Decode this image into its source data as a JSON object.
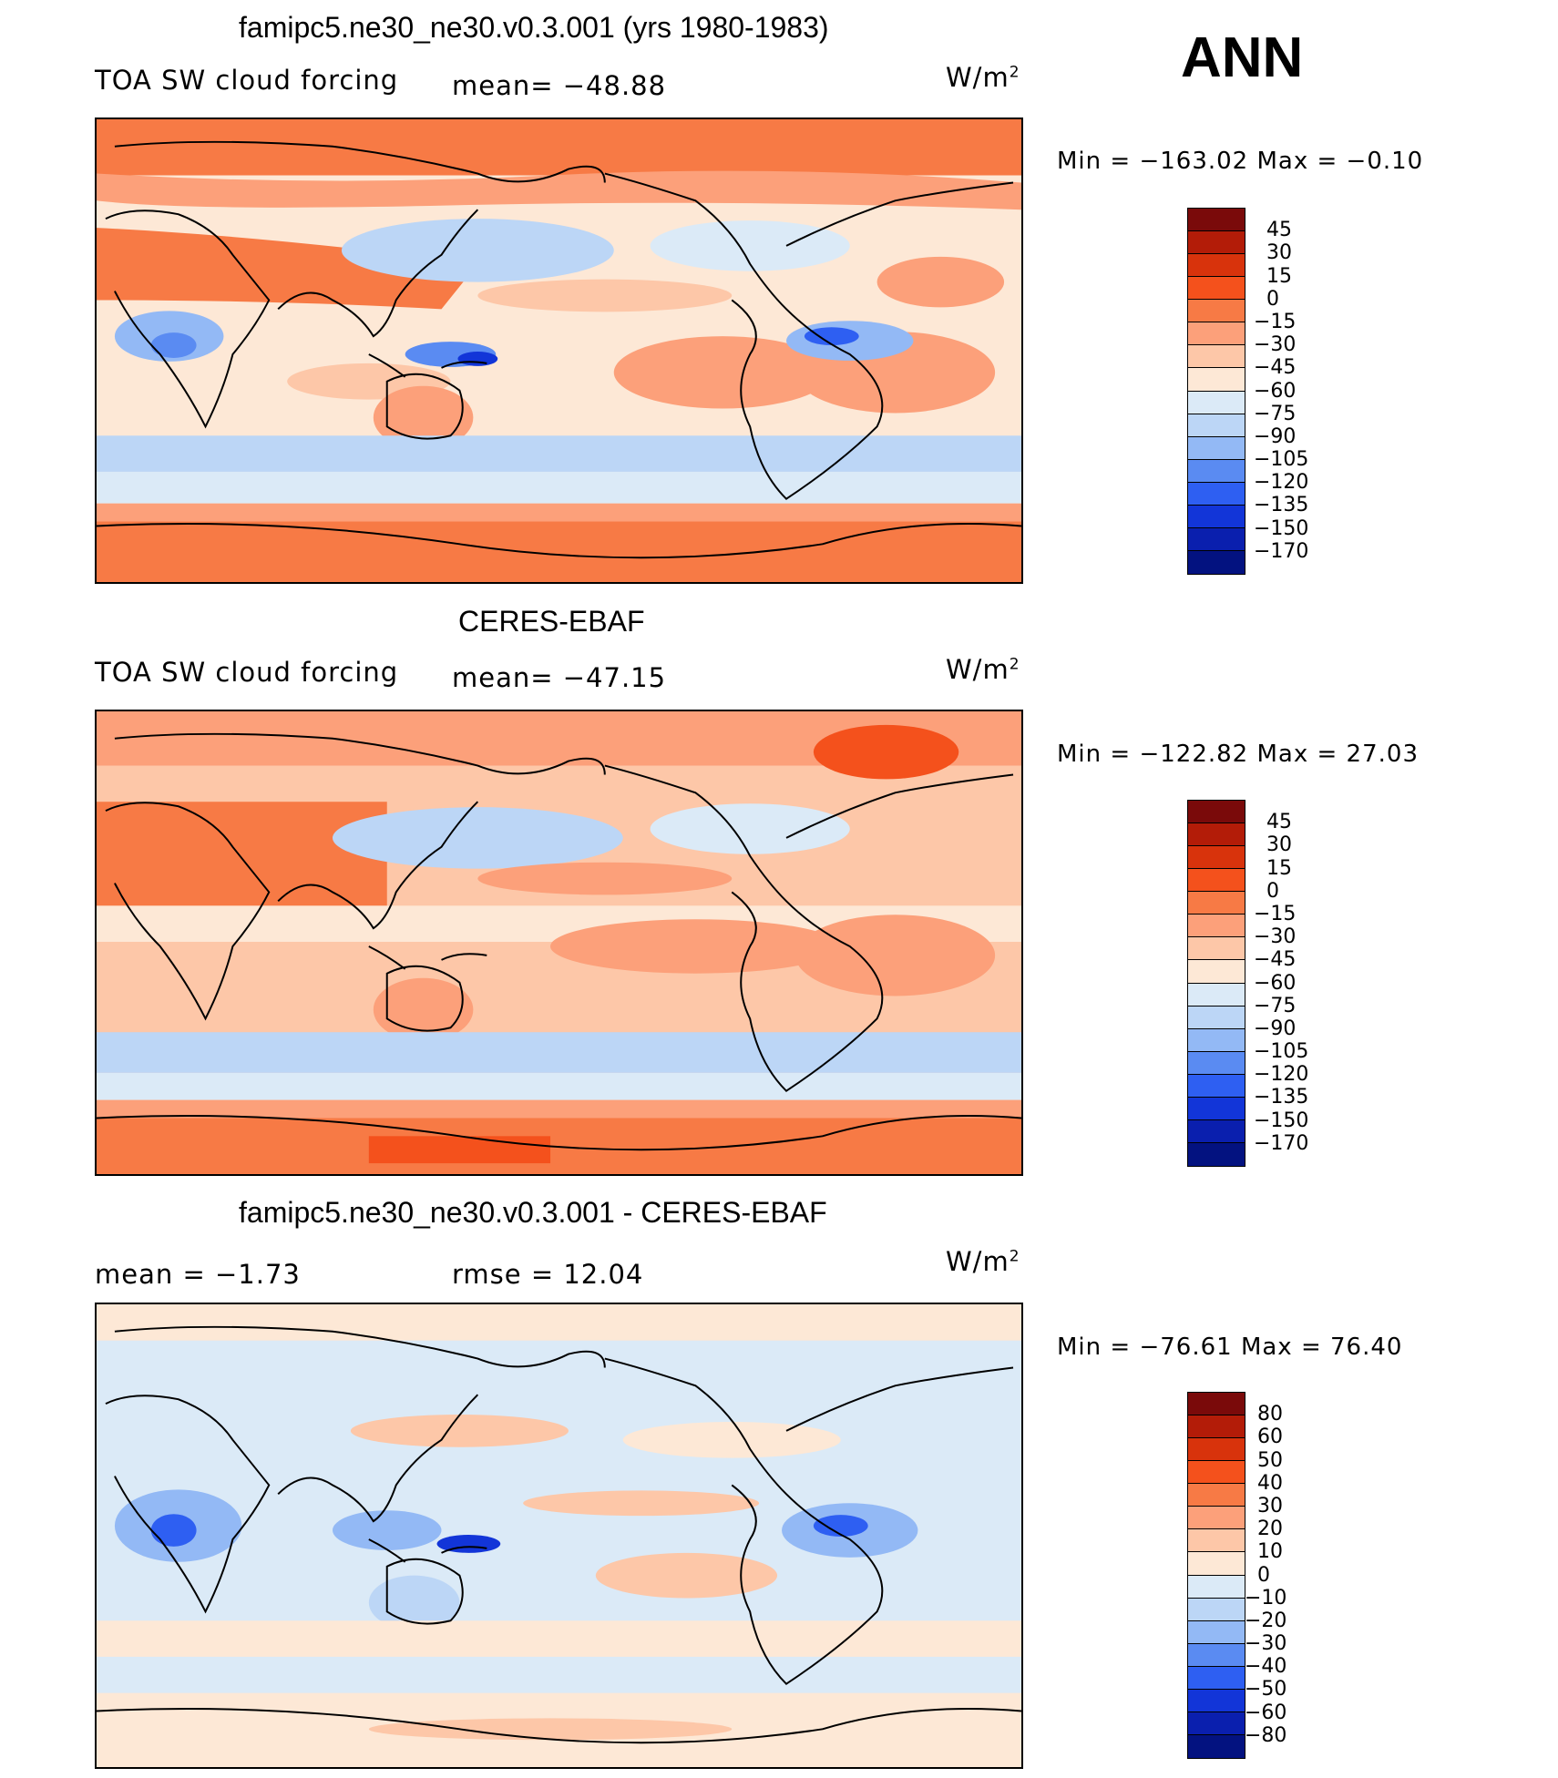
{
  "season": "ANN",
  "units": "W/m",
  "units_sup": "2",
  "panels": [
    {
      "title": "famipc5.ne30_ne30.v0.3.001 (yrs 1980-1983)",
      "left": "TOA SW cloud forcing",
      "center": "mean= −48.88",
      "min": "Min  =  −163.02",
      "max": "Max  =    −0.10"
    },
    {
      "title": "CERES-EBAF",
      "left": "TOA SW cloud forcing",
      "center": "mean= −47.15",
      "min": "Min  =  −122.82",
      "max": "Max  =    27.03"
    },
    {
      "title": "famipc5.ne30_ne30.v0.3.001 - CERES-EBAF",
      "left": "mean  =    −1.73",
      "center": "rmse  =    12.04",
      "min": "Min  =  −76.61",
      "max": "Max  =    76.40"
    }
  ],
  "colorbars": [
    {
      "labels": [
        "45",
        "30",
        "15",
        "0",
        "−15",
        "−30",
        "−45",
        "−60",
        "−75",
        "−90",
        "−105",
        "−120",
        "−135",
        "−150",
        "−170"
      ],
      "colors": [
        "#7a0a0a",
        "#b31c08",
        "#d8330c",
        "#f4511c",
        "#f77a45",
        "#fca07a",
        "#fdc7a8",
        "#fde8d6",
        "#dbeaf7",
        "#bcd6f6",
        "#93b9f5",
        "#5a8bf2",
        "#2e5ff2",
        "#1235d8",
        "#0a1fae",
        "#031280"
      ]
    },
    {
      "labels": [
        "45",
        "30",
        "15",
        "0",
        "−15",
        "−30",
        "−45",
        "−60",
        "−75",
        "−90",
        "−105",
        "−120",
        "−135",
        "−150",
        "−170"
      ],
      "colors": [
        "#7a0a0a",
        "#b31c08",
        "#d8330c",
        "#f4511c",
        "#f77a45",
        "#fca07a",
        "#fdc7a8",
        "#fde8d6",
        "#dbeaf7",
        "#bcd6f6",
        "#93b9f5",
        "#5a8bf2",
        "#2e5ff2",
        "#1235d8",
        "#0a1fae",
        "#031280"
      ]
    },
    {
      "labels": [
        "80",
        "60",
        "50",
        "40",
        "30",
        "20",
        "10",
        "0",
        "−10",
        "−20",
        "−30",
        "−40",
        "−50",
        "−60",
        "−80"
      ],
      "colors": [
        "#7a0a0a",
        "#b31c08",
        "#d8330c",
        "#f4511c",
        "#f77a45",
        "#fca07a",
        "#fdc7a8",
        "#fde8d6",
        "#dbeaf7",
        "#bcd6f6",
        "#93b9f5",
        "#5a8bf2",
        "#2e5ff2",
        "#1235d8",
        "#0a1fae",
        "#031280"
      ]
    }
  ]
}
